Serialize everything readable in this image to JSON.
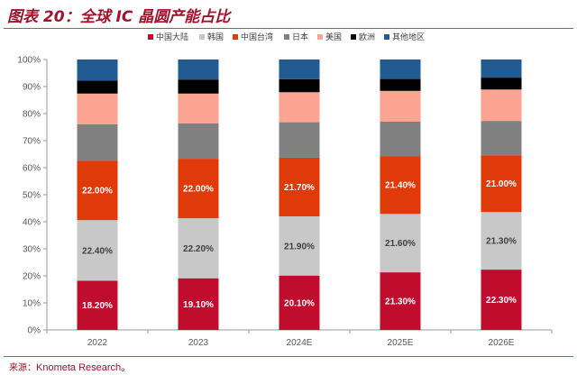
{
  "title": "图表 20：全球 IC 晶圆产能占比",
  "source": {
    "label": "来源：",
    "text": "Knometa Research。"
  },
  "chart_data": {
    "type": "bar",
    "stacked": true,
    "title": "全球 IC 晶圆产能占比",
    "categories": [
      "2022",
      "2023",
      "2024E",
      "2025E",
      "2026E"
    ],
    "ylim": [
      0,
      100
    ],
    "yticks": [
      "0%",
      "10%",
      "20%",
      "30%",
      "40%",
      "50%",
      "60%",
      "70%",
      "80%",
      "90%",
      "100%"
    ],
    "legend_position": "top",
    "series": [
      {
        "name": "中国大陆",
        "color": "#c00d2e",
        "values": [
          18.2,
          19.1,
          20.1,
          21.3,
          22.3
        ],
        "labels": [
          "18.20%",
          "19.10%",
          "20.10%",
          "21.30%",
          "22.30%"
        ]
      },
      {
        "name": "韩国",
        "color": "#c8c8c8",
        "values": [
          22.4,
          22.2,
          21.9,
          21.6,
          21.3
        ],
        "labels": [
          "22.40%",
          "22.20%",
          "21.90%",
          "21.60%",
          "21.30%"
        ]
      },
      {
        "name": "中国台湾",
        "color": "#e03a0a",
        "values": [
          22.0,
          22.0,
          21.7,
          21.4,
          21.0
        ],
        "labels": [
          "22.00%",
          "22.00%",
          "21.70%",
          "21.40%",
          "21.00%"
        ]
      },
      {
        "name": "日本",
        "color": "#808080",
        "values": [
          13.4,
          13.1,
          13.1,
          12.7,
          12.7
        ]
      },
      {
        "name": "美国",
        "color": "#fca392",
        "values": [
          11.4,
          11.0,
          11.1,
          11.4,
          11.6
        ]
      },
      {
        "name": "欧洲",
        "color": "#000000",
        "values": [
          4.8,
          5.2,
          4.8,
          4.4,
          4.4
        ]
      },
      {
        "name": "其他地区",
        "color": "#225b92",
        "values": [
          7.8,
          7.4,
          7.3,
          7.2,
          6.7
        ]
      }
    ]
  }
}
